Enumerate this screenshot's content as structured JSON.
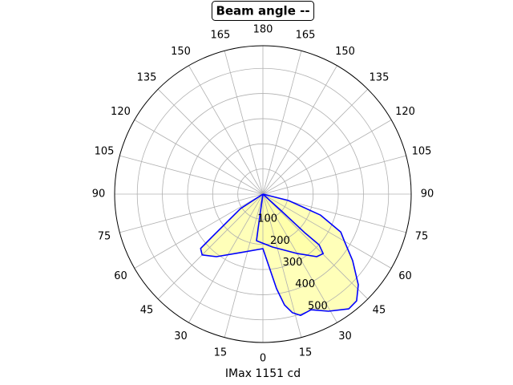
{
  "chart_data": {
    "type": "polar",
    "title": "Beam angle --",
    "xlabel": "IMax 1151 cd",
    "xticks": [
      0,
      15,
      30,
      45,
      60,
      75,
      90,
      105,
      120,
      135,
      150,
      165,
      180,
      {
        "value": -15,
        "label": "15"
      },
      {
        "value": -30,
        "label": "30"
      },
      {
        "value": -45,
        "label": "45"
      },
      {
        "value": -60,
        "label": "60"
      },
      {
        "value": -75,
        "label": "75"
      },
      {
        "value": -90,
        "label": "90"
      },
      {
        "value": -105,
        "label": "105"
      },
      {
        "value": -120,
        "label": "120"
      },
      {
        "value": -135,
        "label": "135"
      },
      {
        "value": -150,
        "label": "150"
      },
      {
        "value": -165,
        "label": "165"
      }
    ],
    "ylim": [
      0,
      590
    ],
    "yticks": [
      100,
      200,
      300,
      400,
      500
    ],
    "grid": true,
    "fill_color": "#ffffa8",
    "series": [
      {
        "color": "#0000ff",
        "x": [
          90,
          76,
          70,
          64,
          60,
          53.5,
          46.5,
          41.3,
          36.8,
          29.3,
          22.6,
          17.3,
          14,
          11,
          8.2,
          4.5,
          0,
          -21,
          -36.6,
          -45,
          -48.9,
          -50,
          -57,
          -57
        ],
        "values": [
          0,
          105,
          244,
          345,
          374,
          444,
          523,
          565,
          570,
          534,
          498,
          505,
          486,
          449,
          380,
          282,
          217,
          249,
          310,
          342,
          329,
          262,
          106,
          0
        ]
      },
      {
        "color": "#0000ff",
        "x": [
          -8,
          -8,
          -7.8,
          10.3,
          29.6,
          40.7,
          45.4,
          48,
          47.3,
          47.7,
          47.7
        ],
        "values": [
          0,
          138,
          187,
          214,
          271,
          328,
          337,
          301,
          226,
          95,
          0
        ]
      }
    ]
  }
}
